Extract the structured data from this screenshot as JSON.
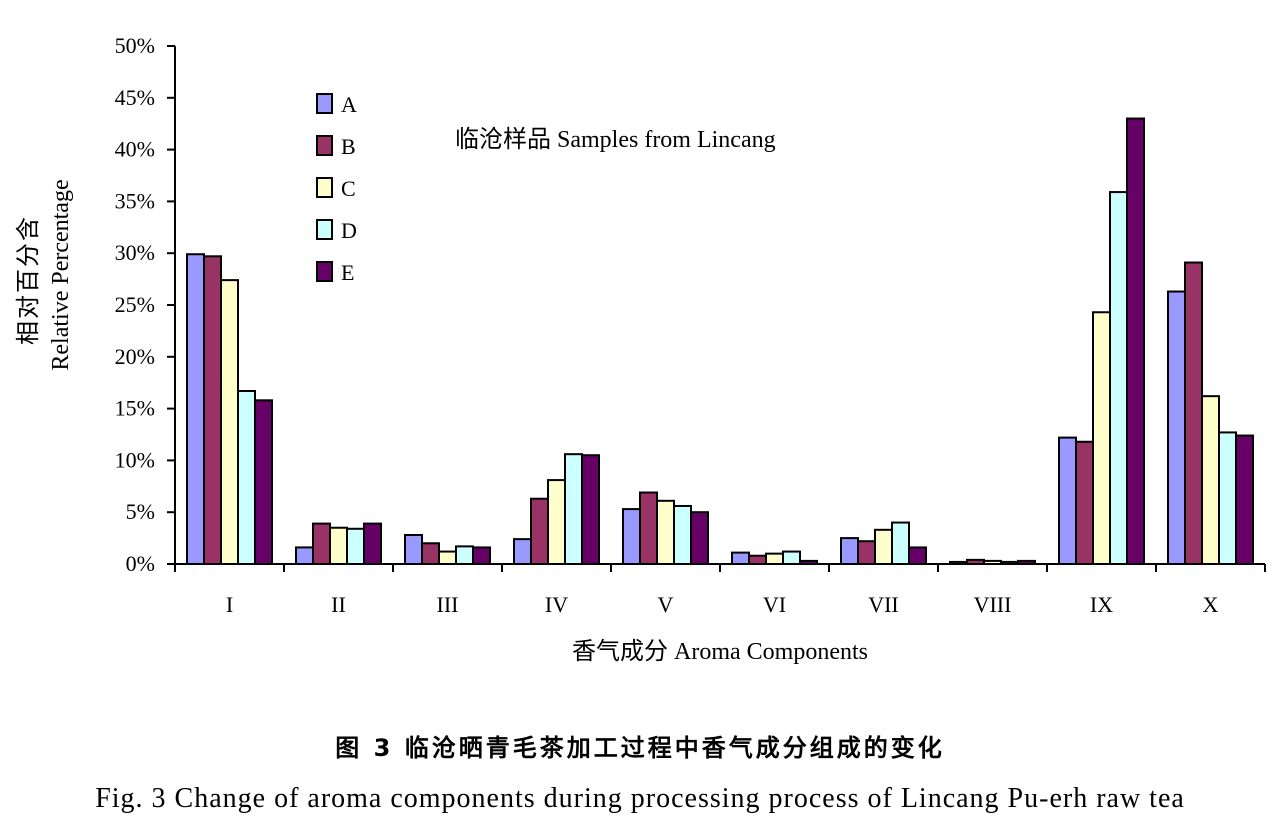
{
  "chart_data": {
    "type": "bar",
    "annotation": "临沧样品  Samples from Lincang",
    "xlabel": "香气成分  Aroma Components",
    "ylabel_cn": "相对百分含",
    "ylabel_en": "Relative Percentage",
    "ylim": [
      0,
      50
    ],
    "yticks": [
      "0%",
      "5%",
      "10%",
      "15%",
      "20%",
      "25%",
      "30%",
      "35%",
      "40%",
      "45%",
      "50%"
    ],
    "categories": [
      "I",
      "II",
      "III",
      "IV",
      "V",
      "VI",
      "VII",
      "VIII",
      "IX",
      "X"
    ],
    "legend_position": "top-left",
    "grid": false,
    "series": [
      {
        "name": "A",
        "color": "#9999ff",
        "values": [
          29.9,
          1.6,
          2.8,
          2.4,
          5.3,
          1.1,
          2.5,
          0.2,
          12.2,
          26.3
        ]
      },
      {
        "name": "B",
        "color": "#993366",
        "values": [
          29.7,
          3.9,
          2.0,
          6.3,
          6.9,
          0.8,
          2.2,
          0.4,
          11.8,
          29.1
        ]
      },
      {
        "name": "C",
        "color": "#ffffcc",
        "values": [
          27.4,
          3.5,
          1.2,
          8.1,
          6.1,
          1.0,
          3.3,
          0.3,
          24.3,
          16.2
        ]
      },
      {
        "name": "D",
        "color": "#ccffff",
        "values": [
          16.7,
          3.4,
          1.7,
          10.6,
          5.6,
          1.2,
          4.0,
          0.2,
          35.9,
          12.7
        ]
      },
      {
        "name": "E",
        "color": "#660066",
        "values": [
          15.8,
          3.9,
          1.6,
          10.5,
          5.0,
          0.3,
          1.6,
          0.3,
          43.0,
          12.4
        ]
      }
    ]
  },
  "captions": {
    "cn": "图 3  临沧晒青毛茶加工过程中香气成分组成的变化",
    "en": "Fig. 3 Change of aroma components during processing process of Lincang Pu-erh raw tea"
  }
}
